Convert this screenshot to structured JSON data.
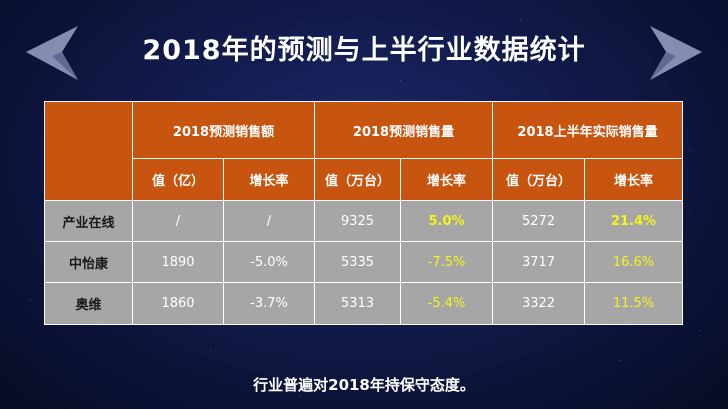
{
  "title": "2018年的预测与上半行业数据统计",
  "table": {
    "groups": [
      "2018预测销售额",
      "2018预测销售量",
      "2018上半年实际销售量"
    ],
    "subheaders": [
      "值（亿）",
      "增长率",
      "值（万台）",
      "增长率",
      "值（万台）",
      "增长率"
    ],
    "rows": [
      {
        "label": "产业在线",
        "cells": [
          "/",
          "/",
          "9325",
          "5.0%",
          "5272",
          "21.4%"
        ]
      },
      {
        "label": "中怡康",
        "cells": [
          "1890",
          "-5.0%",
          "5335",
          "-7.5%",
          "3717",
          "16.6%"
        ]
      },
      {
        "label": "奥维",
        "cells": [
          "1860",
          "-3.7%",
          "5313",
          "-5.4%",
          "3322",
          "11.5%"
        ]
      }
    ]
  },
  "footer": "行业普遍对2018年持保守态度。",
  "colors": {
    "header_orange": "#c8550f",
    "row_gray": "#a6a6a6",
    "highlight_yellow": "#f3f51a",
    "background_navy": "#111a4a"
  }
}
